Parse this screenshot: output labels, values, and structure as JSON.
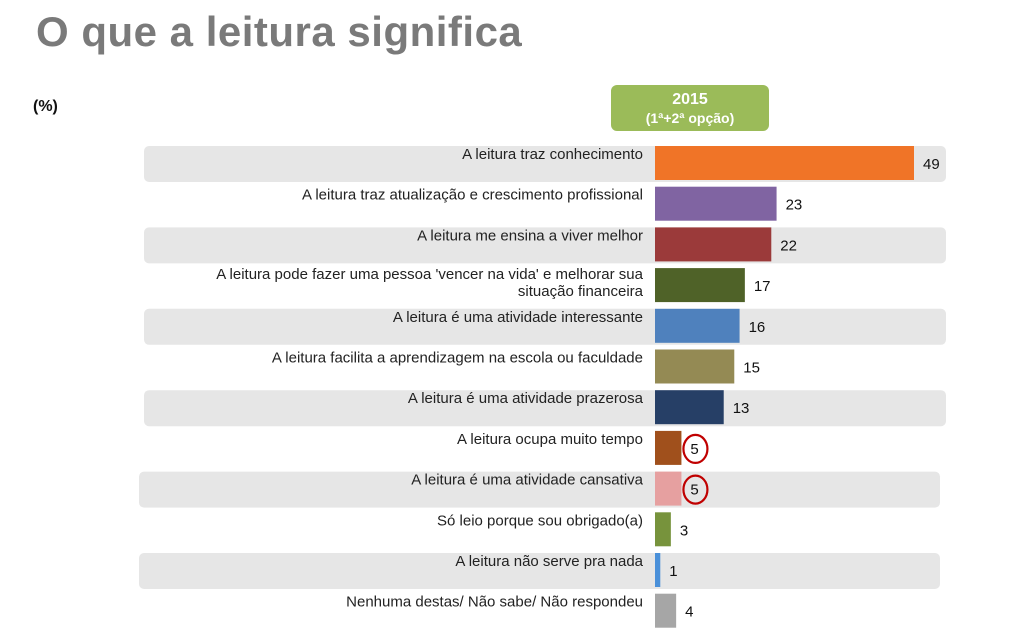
{
  "header": {
    "title": "O que a leitura significa",
    "unit": "(%)",
    "series_year": "2015",
    "series_note": "(1ª+2ª opção)"
  },
  "colors": {
    "band": "#e6e6e6",
    "circle": "#c00000",
    "badge": "#9bbb59"
  },
  "chart_data": {
    "type": "bar",
    "orientation": "horizontal",
    "title": "O que a leitura significa",
    "ylabel": "(%)",
    "series": [
      {
        "name": "2015 (1ª+2ª opção)"
      }
    ],
    "xlim": [
      0,
      49
    ],
    "grid": false,
    "categories": [
      "A leitura traz conhecimento",
      "A leitura traz atualização e crescimento profissional",
      "A leitura me ensina a viver melhor",
      "A leitura pode fazer uma pessoa 'vencer na vida' e melhorar sua situação financeira",
      "A leitura é uma atividade interessante",
      "A leitura facilita a aprendizagem na escola ou faculdade",
      "A leitura é uma atividade prazerosa",
      "A leitura ocupa muito tempo",
      "A leitura é uma atividade cansativa",
      "Só leio porque sou obrigado(a)",
      "A leitura não serve pra nada",
      "Nenhuma destas/ Não sabe/ Não respondeu"
    ],
    "values": [
      49,
      23,
      22,
      17,
      16,
      15,
      13,
      5,
      5,
      3,
      1,
      4
    ],
    "bar_colors": [
      "#f07427",
      "#8064a2",
      "#9b3a3a",
      "#4f6228",
      "#4f81bd",
      "#948a54",
      "#263f66",
      "#a0501c",
      "#e6a0a0",
      "#77933c",
      "#4a90d9",
      "#a6a6a6"
    ],
    "highlighted": [
      7,
      8
    ]
  }
}
